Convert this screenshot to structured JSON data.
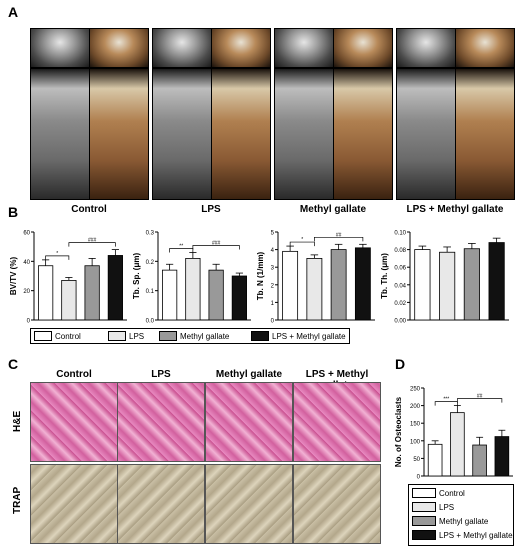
{
  "panels": {
    "a": "A",
    "b": "B",
    "c": "C",
    "d": "D"
  },
  "groups": [
    "Control",
    "LPS",
    "Methyl gallate",
    "LPS + Methyl gallate"
  ],
  "histology": {
    "columns": [
      "Control",
      "LPS",
      "Methyl gallate",
      "LPS + Methyl gallate"
    ],
    "rows": [
      "H&E",
      "TRAP"
    ]
  },
  "colors": {
    "control": "#ffffff",
    "lps": "#e8e8e8",
    "methyl_gallate": "#999999",
    "lps_mg": "#111111"
  },
  "legend": [
    "Control",
    "LPS",
    "Methyl gallate",
    "LPS + Methyl gallate"
  ],
  "chart_data": [
    {
      "type": "bar",
      "ylabel": "BV/TV (%)",
      "ylim": [
        0,
        60
      ],
      "yticks": [
        "0",
        "20",
        "40",
        "60"
      ],
      "categories": [
        "Control",
        "LPS",
        "Methyl gallate",
        "LPS + Methyl gallate"
      ],
      "values": [
        37,
        27,
        37,
        44
      ],
      "errors": [
        4,
        2,
        5,
        4
      ],
      "annotations": [
        {
          "text": "*",
          "from": 0,
          "to": 1
        },
        {
          "text": "###",
          "from": 1,
          "to": 3
        }
      ]
    },
    {
      "type": "bar",
      "ylabel": "Tb. Sp. (μm)",
      "ylim": [
        0,
        0.3
      ],
      "yticks": [
        "0.0",
        "0.1",
        "0.2",
        "0.3"
      ],
      "categories": [
        "Control",
        "LPS",
        "Methyl gallate",
        "LPS + Methyl gallate"
      ],
      "values": [
        0.17,
        0.21,
        0.17,
        0.15
      ],
      "errors": [
        0.02,
        0.02,
        0.02,
        0.01
      ],
      "annotations": [
        {
          "text": "**",
          "from": 0,
          "to": 1
        },
        {
          "text": "###",
          "from": 1,
          "to": 3
        }
      ]
    },
    {
      "type": "bar",
      "ylabel": "Tb. N (1/mm)",
      "ylim": [
        0,
        5
      ],
      "yticks": [
        "0",
        "1",
        "2",
        "3",
        "4",
        "5"
      ],
      "categories": [
        "Control",
        "LPS",
        "Methyl gallate",
        "LPS + Methyl gallate"
      ],
      "values": [
        3.9,
        3.5,
        4.0,
        4.1
      ],
      "errors": [
        0.3,
        0.2,
        0.3,
        0.2
      ],
      "annotations": [
        {
          "text": "*",
          "from": 0,
          "to": 1
        },
        {
          "text": "##",
          "from": 1,
          "to": 3
        }
      ]
    },
    {
      "type": "bar",
      "ylabel": "Tb. Th. (μm)",
      "ylim": [
        0,
        0.1
      ],
      "yticks": [
        "0.00",
        "0.02",
        "0.04",
        "0.06",
        "0.08",
        "0.10"
      ],
      "categories": [
        "Control",
        "LPS",
        "Methyl gallate",
        "LPS + Methyl gallate"
      ],
      "values": [
        0.08,
        0.077,
        0.081,
        0.088
      ],
      "errors": [
        0.004,
        0.006,
        0.006,
        0.005
      ],
      "annotations": []
    },
    {
      "type": "bar",
      "ylabel": "No. of Osteoclasts",
      "ylim": [
        0,
        250
      ],
      "yticks": [
        "0",
        "50",
        "100",
        "150",
        "200",
        "250"
      ],
      "categories": [
        "Control",
        "LPS",
        "Methyl gallate",
        "LPS + Methyl gallate"
      ],
      "values": [
        90,
        180,
        88,
        112
      ],
      "errors": [
        10,
        20,
        22,
        18
      ],
      "annotations": [
        {
          "text": "***",
          "from": 0,
          "to": 1
        },
        {
          "text": "##",
          "from": 1,
          "to": 3
        }
      ]
    }
  ]
}
